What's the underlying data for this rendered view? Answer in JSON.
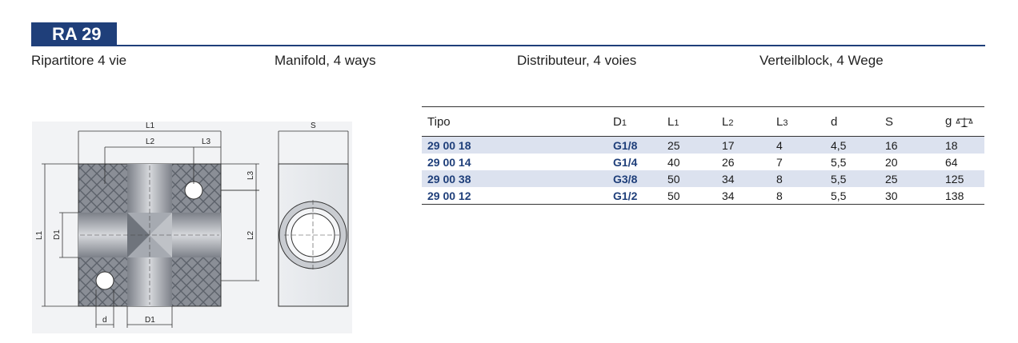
{
  "header": {
    "code": "RA 29",
    "subtitles": [
      "Ripartitore 4 vie",
      "Manifold, 4 ways",
      "Distributeur, 4 voies",
      "Verteilblock, 4 Wege"
    ]
  },
  "drawing": {
    "labels": {
      "L1_top": "L1",
      "L2_top": "L2",
      "L3_top": "L3",
      "L3_side": "L3",
      "L1_left": "L1",
      "D1_left": "D1",
      "L2_right": "L2",
      "d_bottom": "d",
      "D1_bottom": "D1",
      "S_top": "S"
    }
  },
  "table": {
    "headers": {
      "tipo": "Tipo",
      "d1_main": "D",
      "d1_sub": "1",
      "l1_main": "L",
      "l1_sub": "1",
      "l2_main": "L",
      "l2_sub": "2",
      "l3_main": "L",
      "l3_sub": "3",
      "d": "d",
      "s": "S",
      "g": "g"
    },
    "rows": [
      {
        "tipo": "29 00 18",
        "d1": "G1/8",
        "l1": "25",
        "l2": "17",
        "l3": "4",
        "d": "4,5",
        "s": "16",
        "g": "18"
      },
      {
        "tipo": "29 00 14",
        "d1": "G1/4",
        "l1": "40",
        "l2": "26",
        "l3": "7",
        "d": "5,5",
        "s": "20",
        "g": "64"
      },
      {
        "tipo": "29 00 38",
        "d1": "G3/8",
        "l1": "50",
        "l2": "34",
        "l3": "8",
        "d": "5,5",
        "s": "25",
        "g": "125"
      },
      {
        "tipo": "29 00 12",
        "d1": "G1/2",
        "l1": "50",
        "l2": "34",
        "l3": "8",
        "d": "5,5",
        "s": "30",
        "g": "138"
      }
    ]
  },
  "colors": {
    "brand_blue": "#1f3f7a",
    "row_stripe": "#dce2ef"
  }
}
